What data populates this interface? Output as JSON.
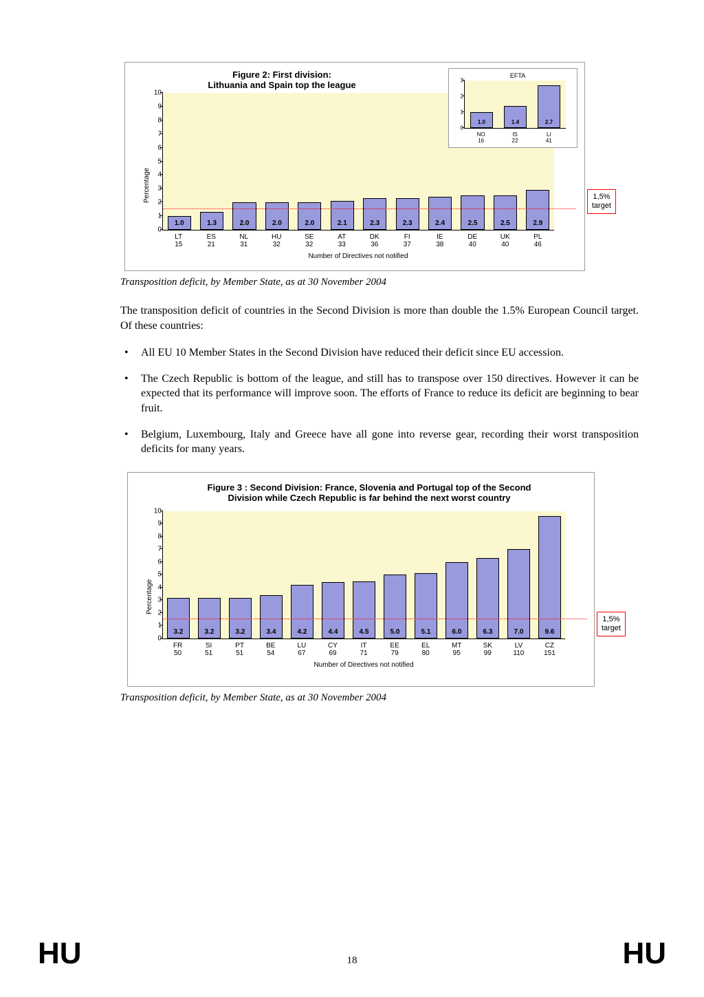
{
  "figure2": {
    "title_line1": "Figure 2: First division:",
    "title_line2": "Lithuania and Spain top the league",
    "ylabel": "Percentage",
    "xlabel": "Number of Directives not notified",
    "ylim": [
      0,
      10
    ],
    "ytick_step": 1,
    "bar_color": "#9999dd",
    "bar_border": "#000000",
    "plot_bg": "#fbf8d0",
    "target_value": 1.5,
    "target_label_line1": "1,5%",
    "target_label_line2": "target",
    "target_color": "#ff0000",
    "categories": [
      "LT",
      "ES",
      "NL",
      "HU",
      "SE",
      "AT",
      "DK",
      "FI",
      "IE",
      "DE",
      "UK",
      "PL"
    ],
    "directives": [
      15,
      21,
      31,
      32,
      32,
      33,
      36,
      37,
      38,
      40,
      40,
      46
    ],
    "values": [
      1.0,
      1.3,
      2.0,
      2.0,
      2.0,
      2.1,
      2.3,
      2.3,
      2.4,
      2.5,
      2.5,
      2.9
    ],
    "inset": {
      "title": "EFTA",
      "ylim": [
        0,
        3
      ],
      "ytick_step": 1,
      "categories": [
        "NO",
        "IS",
        "LI"
      ],
      "directives": [
        16,
        22,
        41
      ],
      "values": [
        1.0,
        1.4,
        2.7
      ],
      "bar_color": "#9999dd",
      "plot_bg": "#fbf8d0"
    }
  },
  "caption1": "Transposition deficit, by Member State, as at 30 November 2004",
  "para1": "The transposition deficit of countries in the Second Division is more than double the 1.5% European Council target. Of these countries:",
  "bullets": [
    "All EU 10 Member States in the Second Division have reduced their deficit since EU accession.",
    "The Czech Republic is bottom of the league, and still has to transpose over 150 directives. However it can be expected that its performance will improve soon. The efforts of France to reduce its deficit are beginning to bear fruit.",
    "Belgium, Luxembourg, Italy and Greece have all gone into reverse gear, recording their worst transposition deficits for many years."
  ],
  "figure3": {
    "title_line1": "Figure 3 : Second Division: France, Slovenia and Portugal top of the Second",
    "title_line2": "Division while Czech Republic is far behind the next worst country",
    "ylabel": "Percentage",
    "xlabel": "Number of Directives not notified",
    "ylim": [
      0,
      10
    ],
    "ytick_step": 1,
    "bar_color": "#9999dd",
    "bar_border": "#000000",
    "plot_bg": "#fbf8d0",
    "target_value": 1.5,
    "target_label_line1": "1,5%",
    "target_label_line2": "target",
    "target_color": "#ff0000",
    "categories": [
      "FR",
      "SI",
      "PT",
      "BE",
      "LU",
      "CY",
      "IT",
      "EE",
      "EL",
      "MT",
      "SK",
      "LV",
      "CZ"
    ],
    "directives": [
      50,
      51,
      51,
      54,
      67,
      69,
      71,
      79,
      80,
      95,
      99,
      110,
      151
    ],
    "values": [
      3.2,
      3.2,
      3.2,
      3.4,
      4.2,
      4.4,
      4.5,
      5.0,
      5.1,
      6.0,
      6.3,
      7.0,
      9.6
    ]
  },
  "caption2": "Transposition deficit, by Member State, as at 30 November 2004",
  "footer": {
    "left": "HU",
    "pagenum": "18",
    "right": "HU"
  }
}
